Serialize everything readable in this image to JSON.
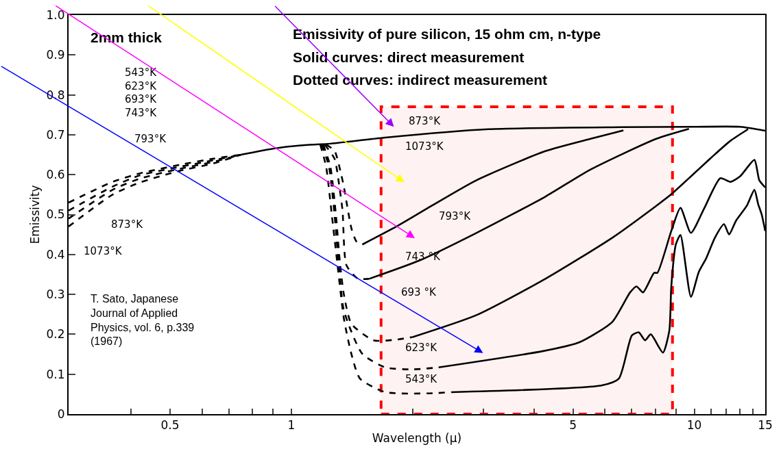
{
  "chart_data": {
    "type": "line",
    "title": "Emissivity of pure silicon, 15 ohm cm, n-type",
    "xlabel": "Wavelength (μ)",
    "ylabel": "Emissivity",
    "log": "x",
    "grid": false,
    "marker": "none",
    "xlim": [
      0.28,
      15
    ],
    "ylim": [
      0,
      1.0
    ],
    "xticks": [
      {
        "value": 0.4,
        "label": null
      },
      0.5,
      {
        "value": 0.6,
        "label": null
      },
      {
        "value": 0.7,
        "label": null
      },
      {
        "value": 0.8,
        "label": null
      },
      {
        "value": 0.9,
        "label": null
      },
      1,
      {
        "value": 2,
        "label": null
      },
      {
        "value": 3,
        "label": null
      },
      {
        "value": 4,
        "label": null
      },
      5,
      {
        "value": 6,
        "label": null
      },
      {
        "value": 7,
        "label": null
      },
      {
        "value": 8,
        "label": null
      },
      {
        "value": 9,
        "label": null
      },
      10,
      {
        "value": 11,
        "label": null
      },
      {
        "value": 12,
        "label": null
      },
      {
        "value": 13,
        "label": null
      },
      {
        "value": 14,
        "label": null
      },
      15
    ],
    "yticks": [
      0,
      0.1,
      0.2,
      0.3,
      0.4,
      0.5,
      0.6,
      0.7,
      0.8,
      0.9,
      {
        "value": 1.0,
        "label": "1.0"
      }
    ],
    "series": [
      {
        "color": "#000000",
        "line_style": "dashed",
        "x": [
          0.28,
          0.36,
          0.42,
          0.53,
          0.64,
          0.75
        ],
        "values": [
          0.53,
          0.582,
          0.603,
          0.625,
          0.64,
          0.65
        ]
      },
      {
        "color": "#000000",
        "line_style": "dashed",
        "x": [
          0.28,
          0.36,
          0.42,
          0.53,
          0.64,
          0.75
        ],
        "values": [
          0.51,
          0.57,
          0.598,
          0.62,
          0.636,
          0.65
        ]
      },
      {
        "color": "#000000",
        "line_style": "dashed",
        "x": [
          0.28,
          0.36,
          0.42,
          0.53,
          0.64,
          0.75
        ],
        "values": [
          0.49,
          0.562,
          0.59,
          0.615,
          0.632,
          0.65
        ]
      },
      {
        "color": "#000000",
        "line_style": "dashed",
        "x": [
          0.28,
          0.36,
          0.42,
          0.53,
          0.64,
          0.75
        ],
        "values": [
          0.47,
          0.55,
          0.58,
          0.61,
          0.628,
          0.65
        ]
      },
      {
        "color": "#000000",
        "line_style": "solid",
        "x": [
          0.75,
          0.9,
          1.0,
          1.11,
          1.23,
          1.71,
          3.08,
          6.6,
          10,
          13,
          15
        ],
        "values": [
          0.65,
          0.665,
          0.671,
          0.675,
          0.677,
          0.693,
          0.714,
          0.719,
          0.72,
          0.72,
          0.71
        ]
      },
      {
        "color": "#000000",
        "line_style": "dashed",
        "x": [
          1.22,
          1.28,
          1.33,
          1.35,
          1.41,
          1.45,
          1.5
        ],
        "values": [
          0.675,
          0.66,
          0.6,
          0.57,
          0.465,
          0.433,
          0.425
        ]
      },
      {
        "color": "#000000",
        "line_style": "solid",
        "x": [
          1.5,
          1.83,
          2.23,
          2.88,
          4.27,
          5.53,
          6.67
        ],
        "values": [
          0.425,
          0.471,
          0.522,
          0.586,
          0.659,
          0.69,
          0.711
        ]
      },
      {
        "color": "#000000",
        "line_style": "dashed",
        "x": [
          1.21,
          1.28,
          1.32,
          1.34,
          1.37,
          1.46,
          1.56
        ],
        "values": [
          0.675,
          0.64,
          0.56,
          0.51,
          0.373,
          0.34,
          0.339
        ]
      },
      {
        "color": "#000000",
        "line_style": "solid",
        "x": [
          1.56,
          2.08,
          2.88,
          4.27,
          5.53,
          8.05,
          9.7
        ],
        "values": [
          0.339,
          0.385,
          0.454,
          0.545,
          0.613,
          0.69,
          0.715
        ]
      },
      {
        "color": "#000000",
        "line_style": "dashed",
        "x": [
          1.2,
          1.25,
          1.29,
          1.32,
          1.35,
          1.41,
          1.6,
          1.8,
          2.0
        ],
        "values": [
          0.675,
          0.62,
          0.5,
          0.38,
          0.3,
          0.226,
          0.185,
          0.186,
          0.193
        ]
      },
      {
        "color": "#000000",
        "line_style": "solid",
        "x": [
          2.0,
          2.88,
          4.27,
          6.26,
          8.05,
          8.77,
          11.0,
          12.3,
          13.6
        ],
        "values": [
          0.193,
          0.248,
          0.339,
          0.442,
          0.522,
          0.551,
          0.642,
          0.685,
          0.714
        ]
      },
      {
        "color": "#000000",
        "line_style": "dashed",
        "x": [
          1.19,
          1.24,
          1.28,
          1.31,
          1.35,
          1.5,
          1.71,
          2.0,
          2.32
        ],
        "values": [
          0.675,
          0.62,
          0.5,
          0.38,
          0.26,
          0.151,
          0.117,
          0.112,
          0.117
        ]
      },
      {
        "color": "#000000",
        "line_style": "solid",
        "x": [
          2.32,
          4.22,
          5.19,
          6.26,
          6.93,
          7.19,
          7.46,
          7.95,
          8.1,
          8.77,
          9.24,
          9.81,
          10.6,
          11.6,
          12.3,
          13.0,
          14.1,
          14.5,
          15
        ],
        "values": [
          0.117,
          0.158,
          0.18,
          0.231,
          0.305,
          0.32,
          0.305,
          0.354,
          0.354,
          0.459,
          0.517,
          0.454,
          0.517,
          0.591,
          0.582,
          0.596,
          0.637,
          0.586,
          0.568
        ]
      },
      {
        "color": "#000000",
        "line_style": "dashed",
        "x": [
          1.18,
          1.22,
          1.26,
          1.3,
          1.35,
          1.41,
          1.48,
          1.71,
          2.2,
          2.5
        ],
        "values": [
          0.675,
          0.62,
          0.5,
          0.38,
          0.24,
          0.15,
          0.089,
          0.055,
          0.052,
          0.055
        ]
      },
      {
        "color": "#000000",
        "line_style": "solid",
        "x": [
          2.5,
          5.9,
          6.5,
          7.0,
          7.28,
          7.55,
          7.8,
          8.36,
          8.67,
          8.77,
          9.0,
          9.24,
          9.81,
          10.26,
          10.7,
          11.25,
          11.85,
          12.2,
          12.7,
          13.5,
          14.1,
          14.4,
          14.7,
          15
        ],
        "values": [
          0.055,
          0.072,
          0.089,
          0.197,
          0.205,
          0.185,
          0.2,
          0.154,
          0.209,
          0.32,
          0.425,
          0.449,
          0.294,
          0.356,
          0.39,
          0.442,
          0.476,
          0.45,
          0.485,
          0.522,
          0.562,
          0.527,
          0.5,
          0.459
        ]
      }
    ],
    "bands": [
      {
        "axis": "x",
        "from": 1.67,
        "to": 8.83,
        "color": "#ff0000"
      }
    ],
    "annotations": [
      "Solid curves: direct measurement",
      "Dotted curves: indirect measurement",
      "2mm thick",
      "T. Sato, Japanese\nJournal of Applied\nPhysics, vol. 6, p.339\n(1967)",
      "873°K",
      "1073°K",
      "793°K",
      "743 °K",
      "693 °K",
      "623°K",
      "543°K",
      "543°K\n623°K\n693°K\n743°K",
      "793°K",
      "873°K",
      "1073°K"
    ]
  }
}
